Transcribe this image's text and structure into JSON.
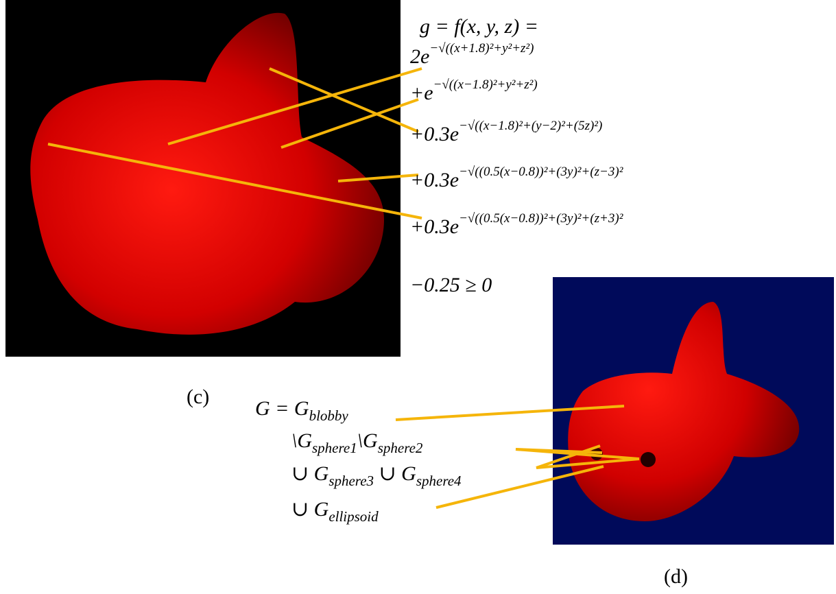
{
  "panel_c": {
    "label": "(c)",
    "equation": {
      "head": "g = f(x, y, z) =",
      "terms": [
        {
          "coef": "2e",
          "exponent": "−√((x+1.8)²+y²+z²)"
        },
        {
          "coef": "+e",
          "exponent": "−√((x−1.8)²+y²+z²)"
        },
        {
          "coef": "+0.3e",
          "exponent": "−√((x−1.8)²+(y−2)²+(5z)²)"
        },
        {
          "coef": "+0.3e",
          "exponent": "−√((0.5(x−0.8))²+(3y)²+(z−3)²"
        },
        {
          "coef": "+0.3e",
          "exponent": "−√((0.5(x−0.8))²+(3y)²+(z+3)²"
        }
      ],
      "tail": "−0.25 ≥ 0"
    }
  },
  "panel_d": {
    "label": "(d)",
    "expression": [
      [
        {
          "text": "G = G",
          "sub": "blobby"
        }
      ],
      [
        {
          "text": "\\G",
          "sub": "sphere1"
        },
        {
          "text": "\\G",
          "sub": "sphere2"
        }
      ],
      [
        {
          "text": "∪ G",
          "sub": "sphere3"
        },
        {
          "text": " ∪ G",
          "sub": "sphere4"
        }
      ],
      [
        {
          "text": "∪ G",
          "sub": "ellipsoid"
        }
      ]
    ]
  }
}
